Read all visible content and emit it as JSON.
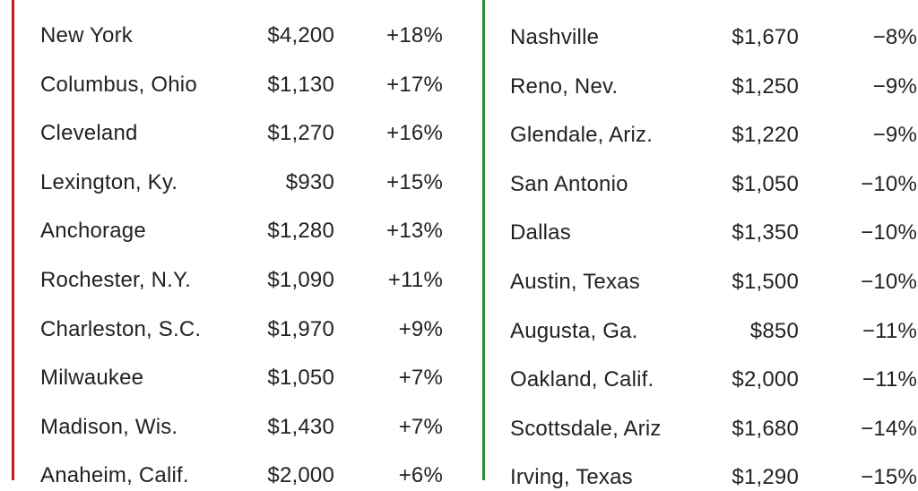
{
  "tables": [
    {
      "rows": [
        [
          "New York",
          "$4,200",
          "+18%"
        ],
        [
          "Columbus, Ohio",
          "$1,130",
          "+17%"
        ],
        [
          "Cleveland",
          "$1,270",
          "+16%"
        ],
        [
          "Lexington, Ky.",
          "$930",
          "+15%"
        ],
        [
          "Anchorage",
          "$1,280",
          "+13%"
        ],
        [
          "Rochester, N.Y.",
          "$1,090",
          "+11%"
        ],
        [
          "Charleston, S.C.",
          "$1,970",
          "+9%"
        ],
        [
          "Milwaukee",
          "$1,050",
          "+7%"
        ],
        [
          "Madison, Wis.",
          "$1,430",
          "+7%"
        ],
        [
          "Anaheim, Calif.",
          "$2,000",
          "+6%"
        ]
      ]
    },
    {
      "rows": [
        [
          "Nashville",
          "$1,670",
          "−8%"
        ],
        [
          "Reno, Nev.",
          "$1,250",
          "−9%"
        ],
        [
          "Glendale, Ariz.",
          "$1,220",
          "−9%"
        ],
        [
          "San Antonio",
          "$1,050",
          "−10%"
        ],
        [
          "Dallas",
          "$1,350",
          "−10%"
        ],
        [
          "Austin, Texas",
          "$1,500",
          "−10%"
        ],
        [
          "Augusta, Ga.",
          "$850",
          "−11%"
        ],
        [
          "Oakland, Calif.",
          "$2,000",
          "−11%"
        ],
        [
          "Scottsdale, Ariz",
          "$1,680",
          "−14%"
        ],
        [
          "Irving, Texas",
          "$1,290",
          "−15%"
        ]
      ]
    }
  ]
}
